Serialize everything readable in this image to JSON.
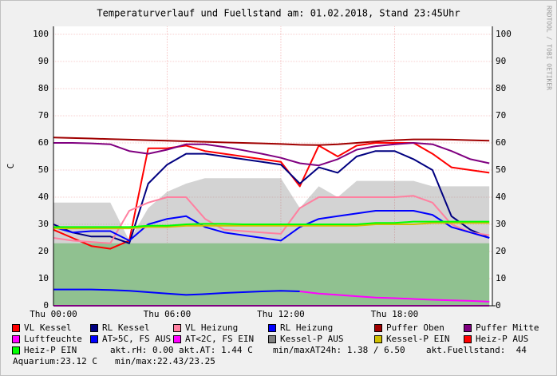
{
  "chart_data": {
    "type": "line",
    "title": "Temperaturverlauf und Fuellstand am: 01.02.2018, Stand 23:45Uhr",
    "y_label": "C",
    "side_text": "RRDTOOL / TOBI OETIKER",
    "x": [
      0,
      1,
      2,
      3,
      4,
      5,
      6,
      7,
      8,
      9,
      10,
      11,
      12,
      13,
      14,
      15,
      16,
      17,
      18,
      19,
      20,
      21,
      22,
      23
    ],
    "xlim": [
      0,
      23.16
    ],
    "xticks": [
      {
        "value": 0,
        "label": "Thu 00:00"
      },
      {
        "value": 6,
        "label": "Thu 06:00"
      },
      {
        "value": 12,
        "label": "Thu 12:00"
      },
      {
        "value": 18,
        "label": "Thu 18:00"
      }
    ],
    "ylim": [
      0,
      100
    ],
    "yticks": [
      0,
      10,
      20,
      30,
      40,
      50,
      60,
      70,
      80,
      90,
      100
    ],
    "grid": true,
    "fill_area": {
      "color": "#98e498",
      "values": [
        23,
        23,
        23,
        23,
        23,
        23,
        23,
        23,
        23,
        23,
        23,
        23,
        23,
        23,
        23,
        23,
        23,
        23,
        23,
        23,
        23,
        23,
        23,
        23
      ]
    },
    "series": [
      {
        "name": "VL Kessel",
        "color": "#ff0000",
        "values": [
          28,
          25,
          22,
          21,
          24,
          58,
          58,
          59,
          57,
          56,
          55,
          54,
          53,
          44,
          59,
          55,
          59,
          60,
          60,
          60,
          56,
          51,
          50,
          49
        ]
      },
      {
        "name": "RL Kessel",
        "color": "#000080",
        "values": [
          30,
          27,
          25.5,
          25.5,
          23,
          45,
          52,
          56,
          56,
          55,
          54,
          53,
          52,
          45,
          51,
          49,
          55,
          57,
          57,
          54,
          50,
          33,
          28,
          25
        ]
      },
      {
        "name": "VL Heizung",
        "color": "#ff80a0",
        "values": [
          25,
          24,
          23.5,
          23,
          35,
          38,
          40,
          40,
          32,
          28,
          27.5,
          27,
          26.5,
          36,
          40,
          40,
          40,
          40,
          40,
          40.5,
          38,
          30,
          27,
          26
        ]
      },
      {
        "name": "RL Heizung",
        "color": "#0000ff",
        "values": [
          29,
          27,
          27.5,
          27.5,
          24,
          30,
          32,
          33,
          29,
          27,
          26,
          25,
          24,
          29,
          32,
          33,
          34,
          35,
          35,
          35,
          33.5,
          29,
          27,
          25
        ]
      },
      {
        "name": "Puffer Oben",
        "color": "#a00000",
        "values": [
          62,
          61.8,
          61.6,
          61.4,
          61.2,
          61,
          60.8,
          60.6,
          60.4,
          60.2,
          60,
          59.8,
          59.6,
          59.3,
          59.2,
          59.5,
          60,
          60.5,
          61,
          61.3,
          61.3,
          61.2,
          61,
          60.8
        ]
      },
      {
        "name": "Puffer Mitte",
        "color": "#800080",
        "values": [
          60,
          60,
          59.8,
          59.5,
          57,
          56,
          57.5,
          59.5,
          59.5,
          58.5,
          57.3,
          56,
          54.5,
          52.5,
          51.7,
          54,
          57.5,
          58.8,
          59.5,
          60,
          59.5,
          57,
          54,
          52.5
        ]
      },
      {
        "name": "Luftfeuchte",
        "color": "#ff00ff",
        "values": [
          0,
          0,
          0,
          0,
          0,
          0,
          0,
          0,
          0,
          0,
          0,
          0,
          0,
          0,
          0,
          0,
          0,
          0,
          0,
          0,
          0,
          0,
          0,
          0
        ]
      },
      {
        "name": "AT>5C, FS AUS",
        "color": "#0000ff",
        "values": [
          6,
          6,
          6,
          5.8,
          5.5,
          5,
          4.5,
          4,
          4.3,
          4.7,
          5,
          5.3,
          5.5,
          5.3,
          null,
          null,
          null,
          null,
          null,
          null,
          null,
          null,
          null,
          null
        ]
      },
      {
        "name": "AT<2C, FS EIN",
        "color": "#ff00ff",
        "values": [
          null,
          null,
          null,
          null,
          null,
          null,
          null,
          null,
          null,
          null,
          null,
          null,
          null,
          5.3,
          4.5,
          4,
          3.5,
          3,
          2.8,
          2.5,
          2.2,
          2,
          1.8,
          1.5
        ]
      },
      {
        "name": "Kessel-P AUS",
        "color": "#808080",
        "style": "area",
        "values": [
          38,
          38,
          38,
          38,
          24,
          36,
          42,
          45,
          47,
          47,
          47,
          47,
          47,
          36,
          44,
          40,
          46,
          46,
          46,
          46,
          44,
          44,
          44,
          44
        ]
      },
      {
        "name": "Kessel-P EIN",
        "color": "#d0c000",
        "values": [
          28.5,
          28.5,
          28.5,
          28.5,
          28.5,
          29,
          29,
          29.5,
          29.5,
          29.5,
          29.5,
          29.5,
          29.5,
          29.5,
          29.5,
          29.5,
          29.5,
          30,
          30,
          30,
          30.5,
          30.5,
          30.5,
          30.5
        ]
      },
      {
        "name": "Heiz-P AUS",
        "color": "#ff0000",
        "values": [
          null,
          null,
          null,
          null,
          null,
          null,
          null,
          null,
          null,
          null,
          null,
          null,
          null,
          null,
          null,
          null,
          null,
          null,
          null,
          null,
          null,
          null,
          null,
          null
        ]
      },
      {
        "name": "Heiz-P EIN",
        "color": "#00ff00",
        "values": [
          29,
          29,
          29,
          29,
          29,
          29.5,
          29.5,
          30,
          30.2,
          30.2,
          30,
          30,
          30,
          30,
          30,
          30,
          30,
          30.5,
          30.5,
          31,
          31,
          31,
          31,
          31
        ]
      }
    ],
    "info": [
      "akt.rH: 0.00",
      "akt.AT: 1.44 C",
      "min/maxAT24h: 1.38 / 6.50",
      "akt.Fuellstand:  44",
      "Aquarium:23.12 C",
      "min/max:22.43/23.25"
    ]
  }
}
